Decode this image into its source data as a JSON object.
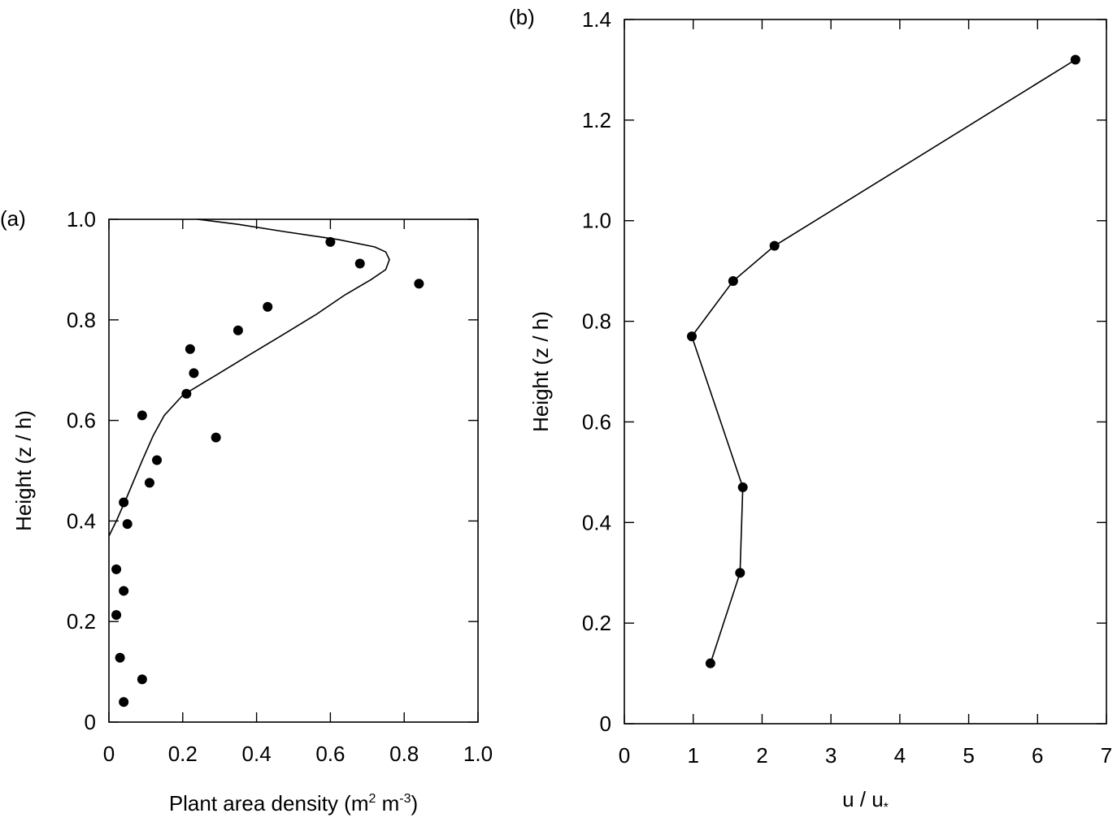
{
  "chart_data": [
    {
      "type": "scatter",
      "panel_label": "(a)",
      "xlabel_main": "Plant area density (m",
      "xlabel_sup1": "2",
      "xlabel_mid": " m",
      "xlabel_sup2": "-3",
      "xlabel_end": ")",
      "ylabel": "Height (z / h)",
      "xlim": [
        0,
        1.0
      ],
      "ylim": [
        0,
        1.0
      ],
      "x_ticks": [
        0,
        0.2,
        0.4,
        0.6,
        0.8,
        1.0
      ],
      "x_tick_labels": [
        "0",
        "0.2",
        "0.4",
        "0.6",
        "0.8",
        "1.0"
      ],
      "y_ticks": [
        0,
        0.2,
        0.4,
        0.6,
        0.8,
        1.0
      ],
      "y_tick_labels": [
        "0",
        "0.2",
        "0.4",
        "0.6",
        "0.8",
        "1.0"
      ],
      "grid": false,
      "series": [
        {
          "kind": "points",
          "points": [
            [
              0.6,
              0.955
            ],
            [
              0.68,
              0.912
            ],
            [
              0.84,
              0.872
            ],
            [
              0.43,
              0.826
            ],
            [
              0.35,
              0.779
            ],
            [
              0.22,
              0.742
            ],
            [
              0.23,
              0.694
            ],
            [
              0.21,
              0.653
            ],
            [
              0.09,
              0.61
            ],
            [
              0.29,
              0.566
            ],
            [
              0.13,
              0.521
            ],
            [
              0.11,
              0.476
            ],
            [
              0.04,
              0.437
            ],
            [
              0.05,
              0.394
            ],
            [
              0.02,
              0.304
            ],
            [
              0.04,
              0.261
            ],
            [
              0.02,
              0.213
            ],
            [
              0.03,
              0.128
            ],
            [
              0.09,
              0.085
            ],
            [
              0.04,
              0.04
            ]
          ]
        },
        {
          "kind": "line",
          "points": [
            [
              0.0,
              0.37
            ],
            [
              0.02,
              0.4
            ],
            [
              0.05,
              0.45
            ],
            [
              0.09,
              0.52
            ],
            [
              0.12,
              0.57
            ],
            [
              0.15,
              0.61
            ],
            [
              0.2,
              0.65
            ],
            [
              0.29,
              0.69
            ],
            [
              0.38,
              0.73
            ],
            [
              0.47,
              0.77
            ],
            [
              0.56,
              0.81
            ],
            [
              0.64,
              0.85
            ],
            [
              0.71,
              0.88
            ],
            [
              0.75,
              0.9
            ],
            [
              0.76,
              0.92
            ],
            [
              0.75,
              0.935
            ],
            [
              0.72,
              0.945
            ],
            [
              0.62,
              0.96
            ],
            [
              0.48,
              0.975
            ],
            [
              0.35,
              0.99
            ],
            [
              0.24,
              1.0
            ]
          ]
        }
      ]
    },
    {
      "type": "line",
      "panel_label": "(b)",
      "xlabel_main": "u / u",
      "xlabel_sub": "*",
      "ylabel": "Height (z / h)",
      "xlim": [
        0,
        7
      ],
      "ylim": [
        0,
        1.4
      ],
      "x_ticks": [
        0,
        1,
        2,
        3,
        4,
        5,
        6,
        7
      ],
      "x_tick_labels": [
        "0",
        "1",
        "2",
        "3",
        "4",
        "5",
        "6",
        "7"
      ],
      "y_ticks": [
        0,
        0.2,
        0.4,
        0.6,
        0.8,
        1.0,
        1.2,
        1.4
      ],
      "y_tick_labels": [
        "0",
        "0.2",
        "0.4",
        "0.6",
        "0.8",
        "1.0",
        "1.2",
        "1.4"
      ],
      "grid": false,
      "series": [
        {
          "kind": "line-markers",
          "points": [
            [
              1.25,
              0.12
            ],
            [
              1.68,
              0.3
            ],
            [
              1.72,
              0.47
            ],
            [
              0.98,
              0.77
            ],
            [
              1.58,
              0.88
            ],
            [
              2.18,
              0.95
            ],
            [
              6.55,
              1.32
            ]
          ]
        }
      ]
    }
  ]
}
